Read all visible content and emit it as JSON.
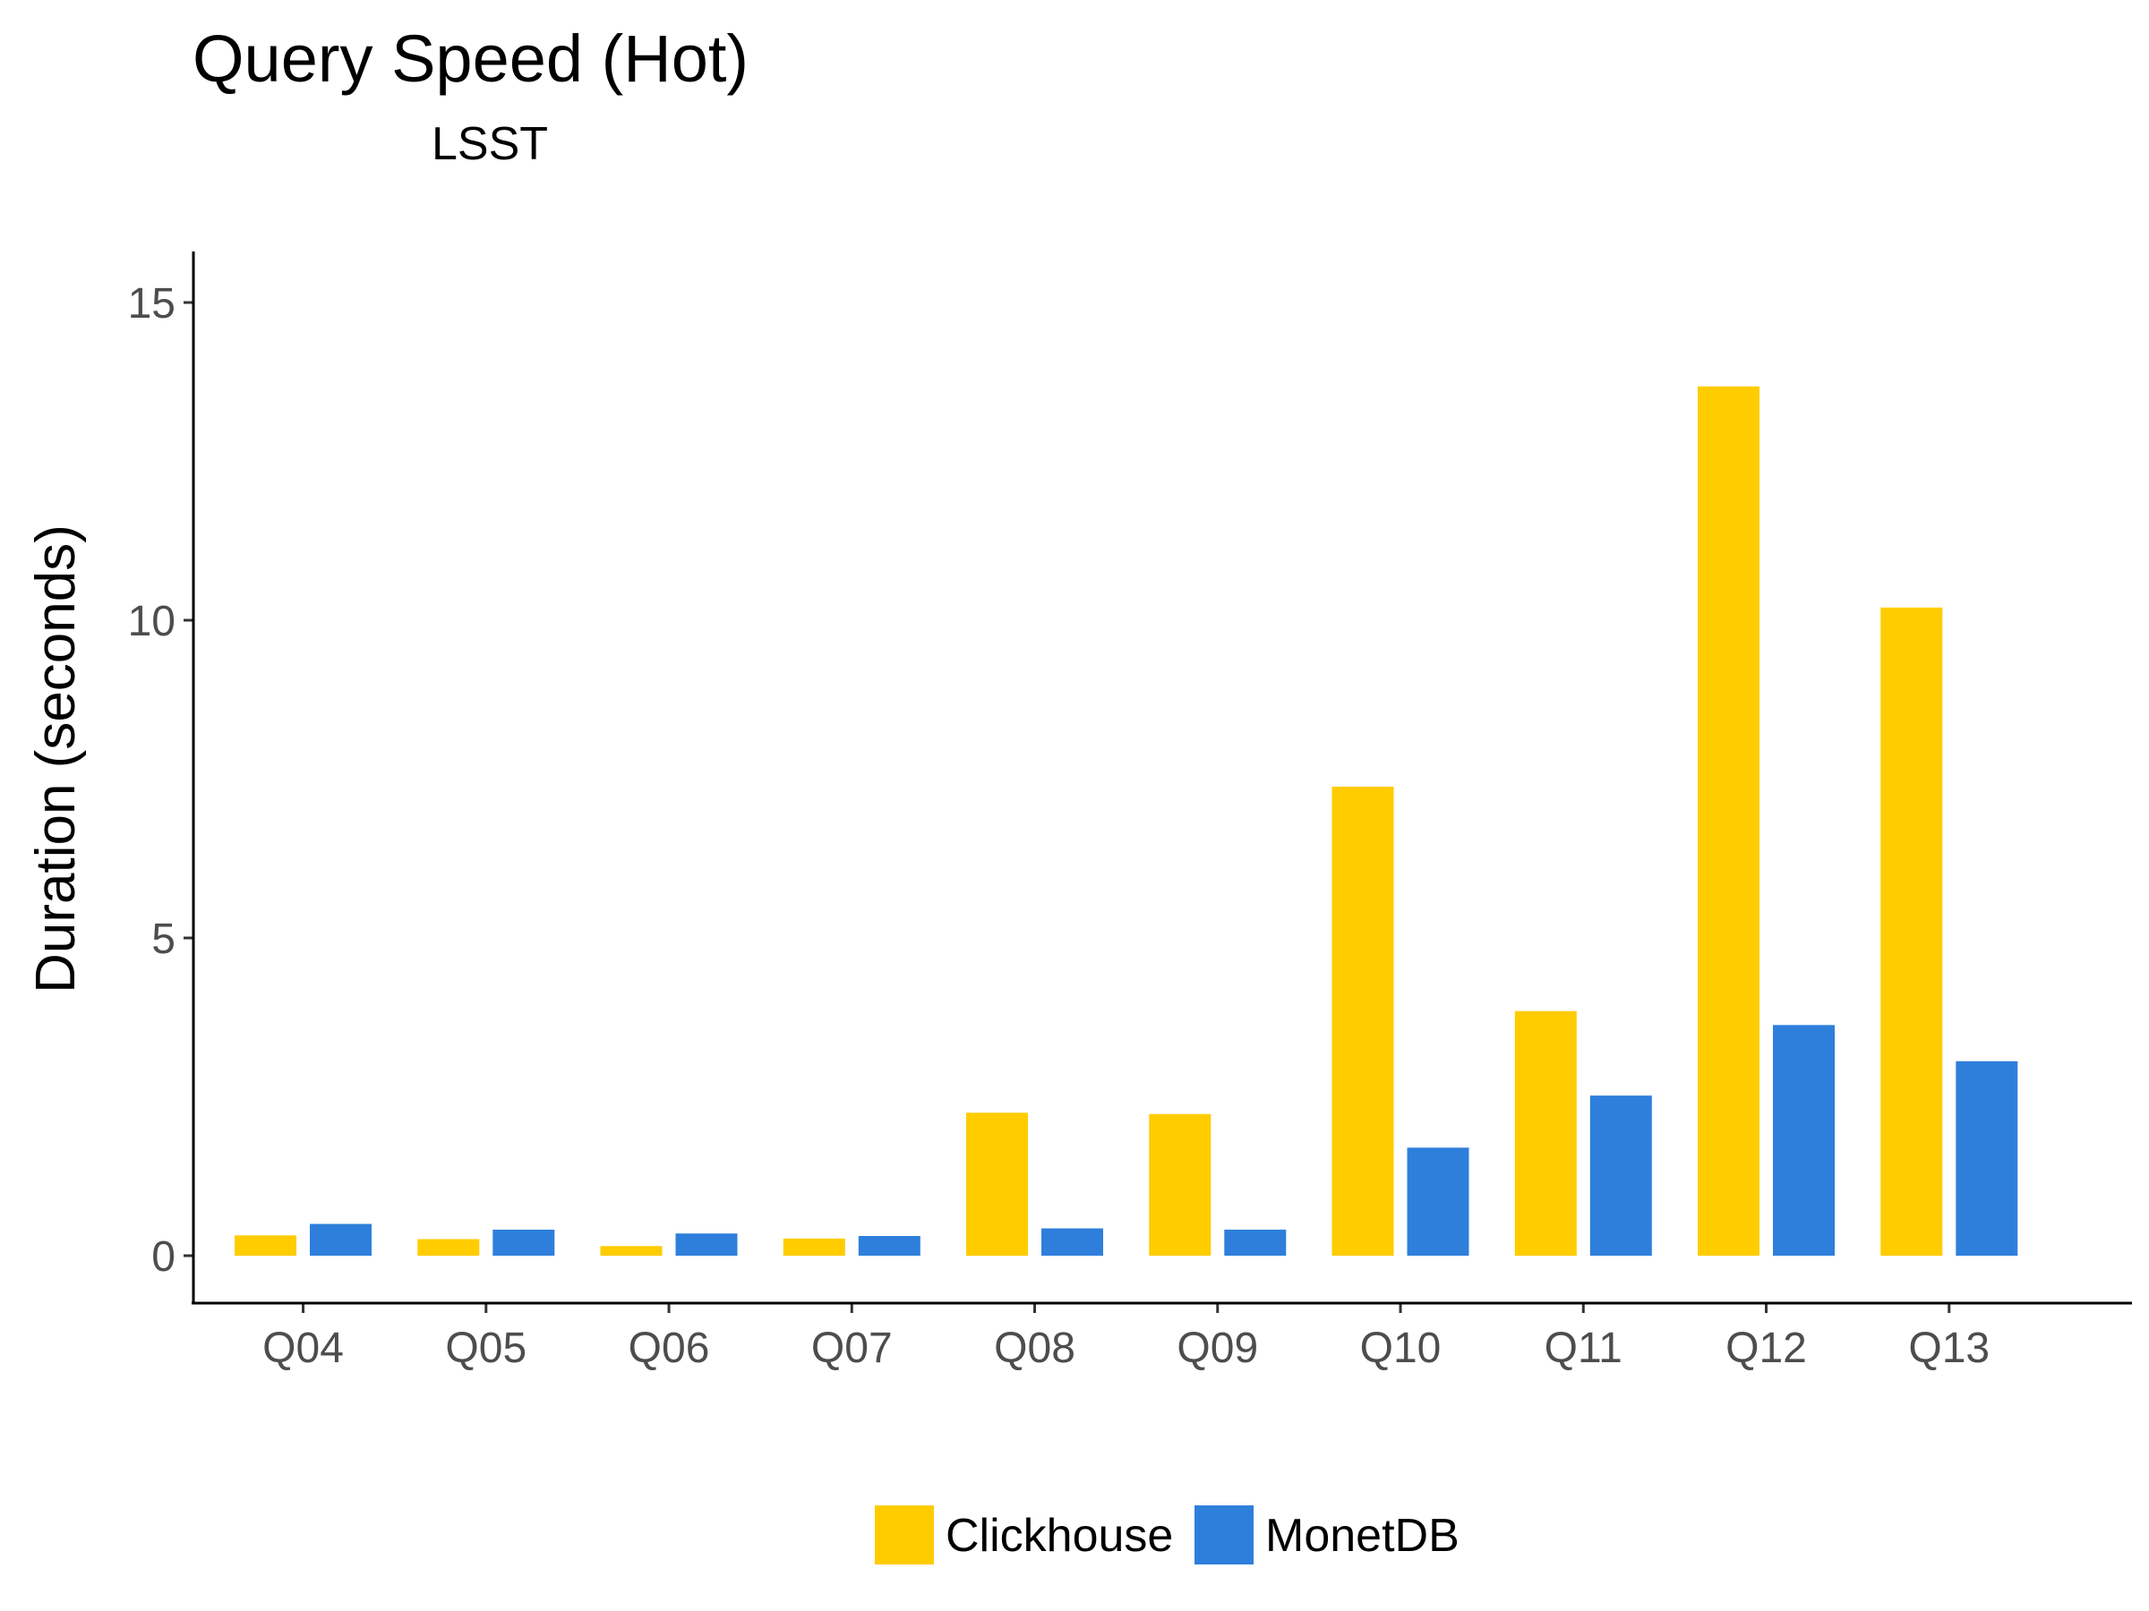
{
  "chart_data": {
    "type": "bar",
    "title": "Query Speed (Hot)",
    "subtitle": "LSST",
    "xlabel": "",
    "ylabel": "Duration (seconds)",
    "categories": [
      "Q04",
      "Q05",
      "Q06",
      "Q07",
      "Q08",
      "Q09",
      "Q10",
      "Q11",
      "Q12",
      "Q13"
    ],
    "series": [
      {
        "name": "Clickhouse",
        "color": "#FFCC00",
        "values": [
          0.32,
          0.26,
          0.15,
          0.27,
          2.25,
          2.23,
          7.38,
          3.85,
          13.68,
          10.2
        ]
      },
      {
        "name": "MonetDB",
        "color": "#2E7FDB",
        "values": [
          0.5,
          0.41,
          0.35,
          0.31,
          0.43,
          0.41,
          1.7,
          2.52,
          3.63,
          3.06
        ]
      }
    ],
    "yticks": [
      0,
      5,
      10,
      15
    ],
    "ylim": [
      -0.75,
      15.8
    ],
    "grid": false,
    "legend_position": "bottom"
  }
}
